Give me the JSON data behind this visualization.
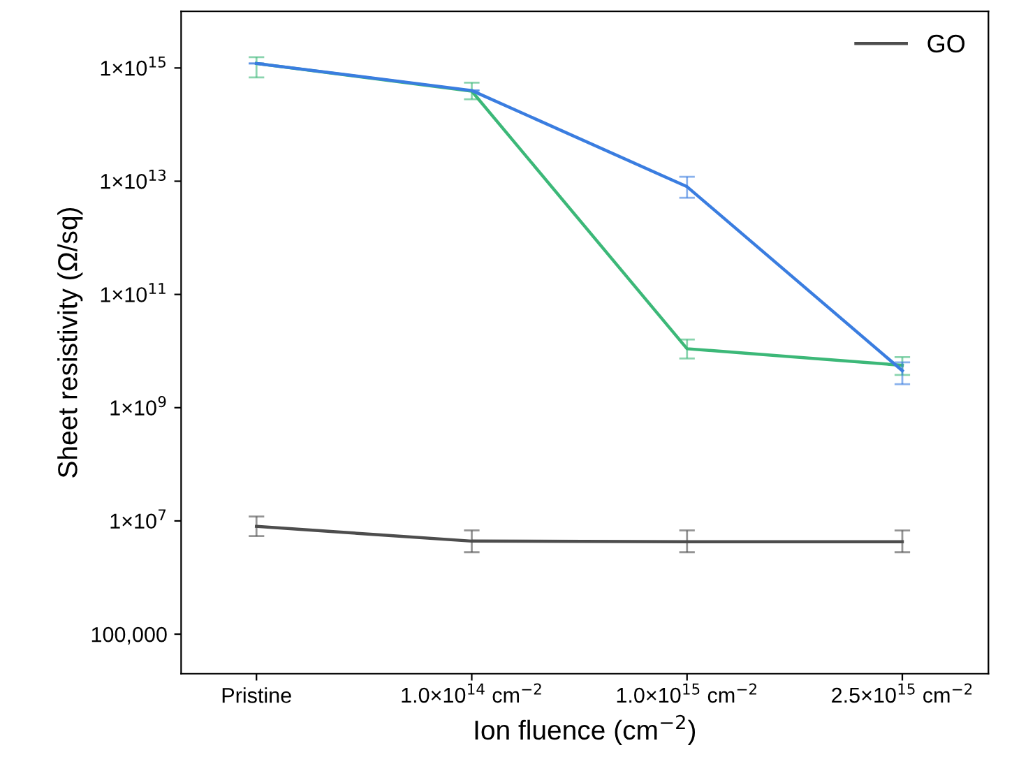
{
  "chart_data": {
    "type": "line",
    "xlabel": "Ion fluence (cm$^{−2}$)",
    "ylabel": "Sheet resistivity (Ω/sq)",
    "categories": [
      "Pristine",
      "1.0×10$^{14}$ cm$^{−2}$",
      "1.0×10$^{15}$ cm$^{−2}$",
      "2.5×10$^{15}$ cm$^{−2}$"
    ],
    "series": [
      {
        "color": "#3cb878",
        "values": [
          1200000000000000.0,
          390000000000000.0,
          11000000000.0,
          5600000000.0
        ],
        "errors": [
          [
            680000000000000.0,
            1550000000000000.0
          ],
          [
            280000000000000.0,
            550000000000000.0
          ],
          [
            7400000000.0,
            16000000000.0
          ],
          [
            3800000000.0,
            7800000000.0
          ]
        ]
      },
      {
        "color": "#3a7de0",
        "values": [
          1200000000000000.0,
          400000000000000.0,
          8000000000000.0,
          4500000000.0
        ],
        "errors": [
          null,
          null,
          [
            5100000000000.0,
            12000000000000.0
          ],
          [
            2600000000.0,
            6300000000.0
          ]
        ]
      },
      {
        "name": "GO",
        "color": "#4d4d4d",
        "values": [
          8000000.0,
          4400000.0,
          4300000.0,
          4300000.0
        ],
        "errors": [
          [
            5400000.0,
            12000000.0
          ],
          [
            2800000.0,
            6800000.0
          ],
          [
            2800000.0,
            6800000.0
          ],
          [
            2800000.0,
            6800000.0
          ]
        ]
      }
    ],
    "log": "y",
    "ylim": [
      20000.0,
      1e+16
    ],
    "yticks": [
      {
        "value": 100000,
        "label": "100,000"
      },
      {
        "value": 10000000.0,
        "label": "1×10$^{7}$"
      },
      {
        "value": 1000000000.0,
        "label": "1×10$^{9}$"
      },
      {
        "value": 100000000000.0,
        "label": "1×10$^{11}$"
      },
      {
        "value": 10000000000000.0,
        "label": "1×10$^{13}$"
      },
      {
        "value": 1000000000000000.0,
        "label": "1×10$^{15}$"
      }
    ],
    "legend": "top right",
    "grid": false,
    "marker": "none",
    "line_style": "solid"
  }
}
